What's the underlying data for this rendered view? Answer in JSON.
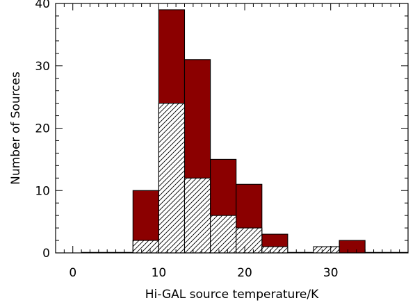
{
  "chart_data": {
    "type": "bar",
    "title": "",
    "xlabel": "Hi-GAL source temperature/K",
    "ylabel": "Number of Sources",
    "xlim": [
      -2,
      39
    ],
    "ylim": [
      0,
      40
    ],
    "x_ticks": [
      0,
      10,
      20,
      30
    ],
    "y_ticks": [
      0,
      10,
      20,
      30,
      40
    ],
    "x_tick_labels": [
      "0",
      "10",
      "20",
      "30"
    ],
    "y_tick_labels": [
      "0",
      "10",
      "20",
      "30",
      "40"
    ],
    "bin_edges": [
      1,
      4,
      7,
      10,
      13,
      16,
      19,
      22,
      25,
      28,
      31,
      34,
      37,
      39
    ],
    "series": [
      {
        "values": [
          0,
          0,
          10,
          39,
          31,
          15,
          11,
          3,
          0,
          0,
          2,
          0,
          0
        ],
        "color": "#8b0000",
        "style": "solid"
      },
      {
        "values": [
          0,
          0,
          2,
          24,
          12,
          6,
          4,
          1,
          0,
          1,
          0,
          0,
          0
        ],
        "color": "#ffffff",
        "style": "hatched"
      }
    ],
    "grid": false,
    "legend": "none"
  }
}
